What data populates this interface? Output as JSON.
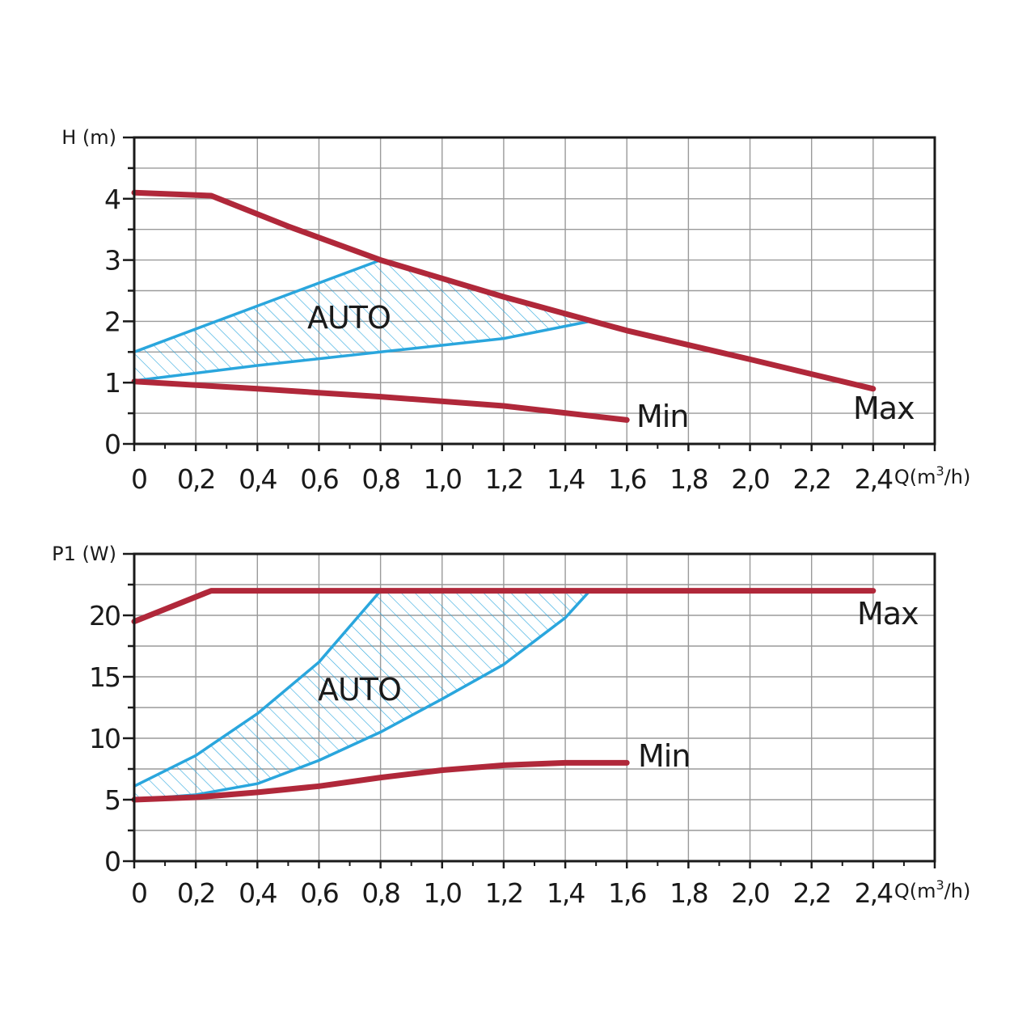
{
  "colors": {
    "max_min_curve": "#b0283a",
    "auto_curve": "#2aa6dd",
    "grid": "#9a9a9a",
    "frame": "#1a1a1a"
  },
  "chart_data": [
    {
      "type": "line",
      "ylabel": "H (m)",
      "xlabel": "Q(m3/h)",
      "xlim": [
        0,
        2.6
      ],
      "ylim": [
        0,
        5
      ],
      "x_ticks": [
        "0",
        "0,2",
        "0,4",
        "0,6",
        "0,8",
        "1,0",
        "1,2",
        "1,4",
        "1,6",
        "1,8",
        "2,0",
        "2,2",
        "2,4"
      ],
      "y_ticks": [
        "0",
        "1",
        "2",
        "3",
        "4"
      ],
      "grid": true,
      "series": [
        {
          "name": "Max",
          "role": "max",
          "points": [
            [
              0,
              4.1
            ],
            [
              0.25,
              4.05
            ],
            [
              0.5,
              3.55
            ],
            [
              0.8,
              3.0
            ],
            [
              1.2,
              2.4
            ],
            [
              1.6,
              1.85
            ],
            [
              2.0,
              1.38
            ],
            [
              2.4,
              0.9
            ]
          ]
        },
        {
          "name": "Min",
          "role": "min",
          "points": [
            [
              0,
              1.02
            ],
            [
              0.4,
              0.9
            ],
            [
              0.8,
              0.77
            ],
            [
              1.2,
              0.62
            ],
            [
              1.6,
              0.39
            ]
          ]
        }
      ],
      "auto_region": {
        "label": "AUTO",
        "upper": [
          [
            0,
            1.5
          ],
          [
            0.4,
            2.25
          ],
          [
            0.8,
            3.0
          ]
        ],
        "lower": [
          [
            0,
            1.03
          ],
          [
            0.4,
            1.28
          ],
          [
            0.8,
            1.5
          ],
          [
            1.2,
            1.72
          ],
          [
            1.48,
            2.0
          ]
        ]
      }
    },
    {
      "type": "line",
      "ylabel": "P1 (W)",
      "xlabel": "Q(m3/h)",
      "xlim": [
        0,
        2.6
      ],
      "ylim": [
        0,
        25
      ],
      "x_ticks": [
        "0",
        "0,2",
        "0,4",
        "0,6",
        "0,8",
        "1,0",
        "1,2",
        "1,4",
        "1,6",
        "1,8",
        "2,0",
        "2,2",
        "2,4"
      ],
      "y_ticks": [
        "0",
        "5",
        "10",
        "15",
        "20"
      ],
      "grid": true,
      "series": [
        {
          "name": "Max",
          "role": "max",
          "points": [
            [
              0,
              19.5
            ],
            [
              0.25,
              22
            ],
            [
              0.8,
              22
            ],
            [
              1.5,
              22
            ],
            [
              2.4,
              22
            ]
          ]
        },
        {
          "name": "Min",
          "role": "min",
          "points": [
            [
              0,
              5.0
            ],
            [
              0.2,
              5.2
            ],
            [
              0.4,
              5.6
            ],
            [
              0.6,
              6.1
            ],
            [
              0.8,
              6.8
            ],
            [
              1.0,
              7.4
            ],
            [
              1.2,
              7.8
            ],
            [
              1.4,
              8.0
            ],
            [
              1.6,
              8.0
            ]
          ]
        }
      ],
      "auto_region": {
        "label": "AUTO",
        "upper": [
          [
            0,
            6.1
          ],
          [
            0.2,
            8.6
          ],
          [
            0.4,
            12.0
          ],
          [
            0.6,
            16.2
          ],
          [
            0.8,
            22.0
          ]
        ],
        "lower": [
          [
            0,
            5.0
          ],
          [
            0.2,
            5.4
          ],
          [
            0.4,
            6.3
          ],
          [
            0.6,
            8.2
          ],
          [
            0.8,
            10.5
          ],
          [
            1.0,
            13.2
          ],
          [
            1.2,
            16.0
          ],
          [
            1.4,
            19.8
          ],
          [
            1.48,
            22.0
          ]
        ]
      }
    }
  ]
}
